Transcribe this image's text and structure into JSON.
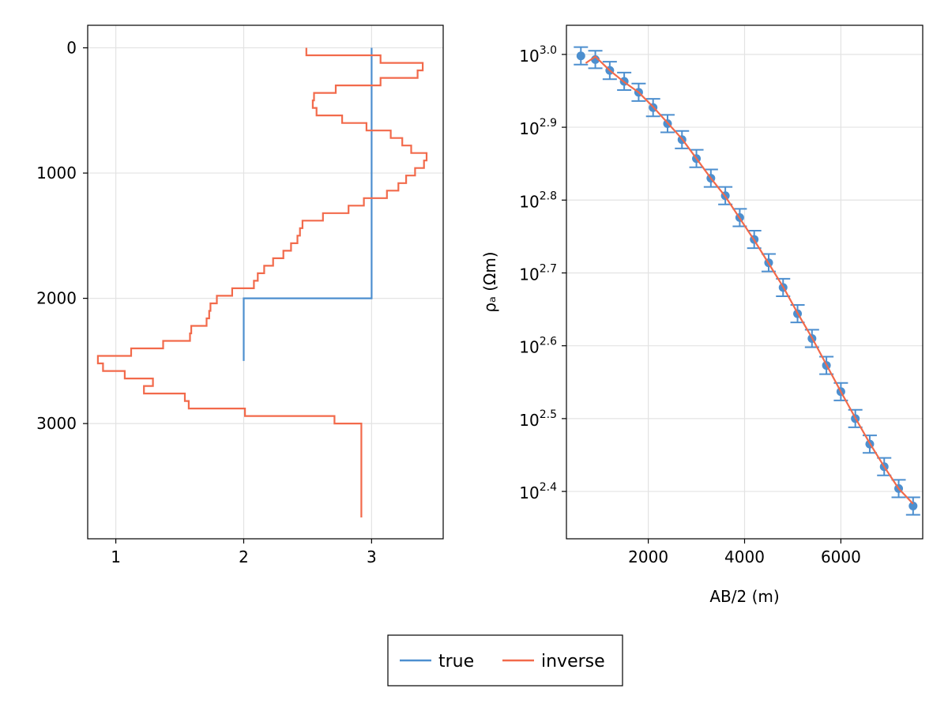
{
  "colors": {
    "true": "#4d8fcf",
    "inverse": "#f26a4b",
    "grid": "#e3e3e3",
    "frame": "#000000"
  },
  "chart_data": [
    {
      "type": "line",
      "xlabel": "",
      "ylabel": "",
      "y_reversed": true,
      "xlim": [
        0.78,
        3.56
      ],
      "ylim": [
        -180,
        3920
      ],
      "xticks": [
        1,
        2,
        3
      ],
      "xtick_labels": [
        "1",
        "2",
        "3"
      ],
      "yticks": [
        0,
        1000,
        2000,
        3000
      ],
      "ytick_labels": [
        "0",
        "1000",
        "2000",
        "3000"
      ],
      "grid": true,
      "series": [
        {
          "name": "true",
          "color": "#4d8fcf",
          "step_points": [
            [
              3.0,
              0
            ],
            [
              3.0,
              2000
            ],
            [
              2.0,
              2000
            ],
            [
              2.0,
              2500
            ]
          ]
        },
        {
          "name": "inverse",
          "color": "#f26a4b",
          "step_points": [
            [
              2.49,
              0
            ],
            [
              2.49,
              60
            ],
            [
              3.07,
              60
            ],
            [
              3.07,
              120
            ],
            [
              3.4,
              120
            ],
            [
              3.4,
              180
            ],
            [
              3.36,
              180
            ],
            [
              3.36,
              240
            ],
            [
              3.07,
              240
            ],
            [
              3.07,
              300
            ],
            [
              2.72,
              300
            ],
            [
              2.72,
              360
            ],
            [
              2.55,
              360
            ],
            [
              2.55,
              420
            ],
            [
              2.54,
              420
            ],
            [
              2.54,
              480
            ],
            [
              2.57,
              480
            ],
            [
              2.57,
              540
            ],
            [
              2.77,
              540
            ],
            [
              2.77,
              600
            ],
            [
              2.96,
              600
            ],
            [
              2.96,
              660
            ],
            [
              3.15,
              660
            ],
            [
              3.15,
              720
            ],
            [
              3.24,
              720
            ],
            [
              3.24,
              780
            ],
            [
              3.31,
              780
            ],
            [
              3.31,
              840
            ],
            [
              3.43,
              840
            ],
            [
              3.43,
              900
            ],
            [
              3.41,
              900
            ],
            [
              3.41,
              960
            ],
            [
              3.34,
              960
            ],
            [
              3.34,
              1020
            ],
            [
              3.27,
              1020
            ],
            [
              3.27,
              1080
            ],
            [
              3.21,
              1080
            ],
            [
              3.21,
              1140
            ],
            [
              3.12,
              1140
            ],
            [
              3.12,
              1200
            ],
            [
              2.94,
              1200
            ],
            [
              2.94,
              1260
            ],
            [
              2.82,
              1260
            ],
            [
              2.82,
              1320
            ],
            [
              2.62,
              1320
            ],
            [
              2.62,
              1380
            ],
            [
              2.46,
              1380
            ],
            [
              2.46,
              1440
            ],
            [
              2.44,
              1440
            ],
            [
              2.44,
              1500
            ],
            [
              2.42,
              1500
            ],
            [
              2.42,
              1560
            ],
            [
              2.37,
              1560
            ],
            [
              2.37,
              1620
            ],
            [
              2.31,
              1620
            ],
            [
              2.31,
              1680
            ],
            [
              2.23,
              1680
            ],
            [
              2.23,
              1740
            ],
            [
              2.16,
              1740
            ],
            [
              2.16,
              1800
            ],
            [
              2.11,
              1800
            ],
            [
              2.11,
              1860
            ],
            [
              2.08,
              1860
            ],
            [
              2.08,
              1920
            ],
            [
              1.91,
              1920
            ],
            [
              1.91,
              1980
            ],
            [
              1.79,
              1980
            ],
            [
              1.79,
              2040
            ],
            [
              1.74,
              2040
            ],
            [
              1.74,
              2100
            ],
            [
              1.73,
              2100
            ],
            [
              1.73,
              2160
            ],
            [
              1.71,
              2160
            ],
            [
              1.71,
              2220
            ],
            [
              1.59,
              2220
            ],
            [
              1.59,
              2280
            ],
            [
              1.58,
              2280
            ],
            [
              1.58,
              2340
            ],
            [
              1.37,
              2340
            ],
            [
              1.37,
              2400
            ],
            [
              1.12,
              2400
            ],
            [
              1.12,
              2460
            ],
            [
              0.86,
              2460
            ],
            [
              0.86,
              2520
            ],
            [
              0.9,
              2520
            ],
            [
              0.9,
              2580
            ],
            [
              1.07,
              2580
            ],
            [
              1.07,
              2640
            ],
            [
              1.29,
              2640
            ],
            [
              1.29,
              2700
            ],
            [
              1.22,
              2700
            ],
            [
              1.22,
              2760
            ],
            [
              1.54,
              2760
            ],
            [
              1.54,
              2820
            ],
            [
              1.57,
              2820
            ],
            [
              1.57,
              2880
            ],
            [
              2.01,
              2880
            ],
            [
              2.01,
              2940
            ],
            [
              2.71,
              2940
            ],
            [
              2.71,
              3000
            ],
            [
              2.92,
              3000
            ],
            [
              2.92,
              3750
            ]
          ]
        }
      ]
    },
    {
      "type": "scatter",
      "xlabel": "AB/2 (m)",
      "ylabel": "ρₐ (Ωm)",
      "y_scale": "log10",
      "xlim": [
        300,
        7700
      ],
      "ylim_log10": [
        2.335,
        3.04
      ],
      "xticks": [
        2000,
        4000,
        6000
      ],
      "xtick_labels": [
        "2000",
        "4000",
        "6000"
      ],
      "yticks_log10": [
        2.4,
        2.5,
        2.6,
        2.7,
        2.8,
        2.9,
        3.0
      ],
      "ytick_exponents": [
        "2.4",
        "2.5",
        "2.6",
        "2.7",
        "2.8",
        "2.9",
        "3.0"
      ],
      "ytick_base": "10",
      "grid": true,
      "observed": {
        "color": "#4d8fcf",
        "x": [
          600,
          900,
          1200,
          1500,
          1800,
          2100,
          2400,
          2700,
          3000,
          3300,
          3600,
          3900,
          4200,
          4500,
          4800,
          5100,
          5400,
          5700,
          6000,
          6300,
          6600,
          6900,
          7200,
          7500
        ],
        "log10_y": [
          2.998,
          2.993,
          2.978,
          2.963,
          2.948,
          2.927,
          2.905,
          2.883,
          2.857,
          2.83,
          2.806,
          2.776,
          2.746,
          2.714,
          2.68,
          2.644,
          2.61,
          2.573,
          2.537,
          2.5,
          2.465,
          2.434,
          2.404,
          2.38
        ],
        "error_log10": 0.012
      },
      "fit": {
        "name": "inverse",
        "color": "#f26a4b",
        "x": [
          700,
          900,
          1200,
          1500,
          1800,
          2100,
          2400,
          2700,
          3000,
          3300,
          3600,
          3900,
          4200,
          4500,
          4800,
          5100,
          5400,
          5700,
          6000,
          6300,
          6600,
          6900,
          7200,
          7500
        ],
        "log10_y": [
          2.988,
          2.997,
          2.978,
          2.962,
          2.948,
          2.928,
          2.906,
          2.884,
          2.857,
          2.83,
          2.805,
          2.775,
          2.745,
          2.713,
          2.681,
          2.645,
          2.611,
          2.574,
          2.537,
          2.501,
          2.466,
          2.434,
          2.404,
          2.383
        ]
      }
    }
  ],
  "legend": {
    "placement": "bottom-center",
    "entries": [
      {
        "label": "true",
        "color": "#4d8fcf"
      },
      {
        "label": "inverse",
        "color": "#f26a4b"
      }
    ]
  }
}
